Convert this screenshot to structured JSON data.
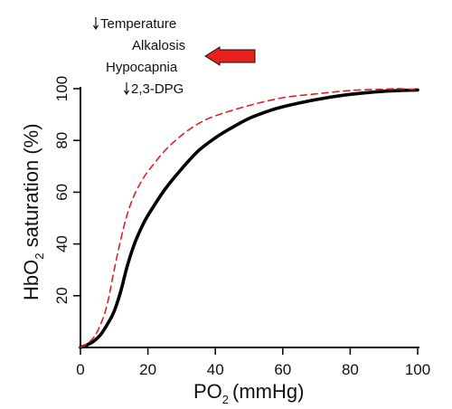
{
  "chart_data": {
    "type": "line",
    "title": "",
    "xlabel": "PO2 (mmHg)",
    "xlabel_parts": {
      "main": "PO",
      "sub": "2",
      "unit": "(mmHg)"
    },
    "ylabel": "HbO2 saturation (%)",
    "ylabel_parts": {
      "main": "HbO",
      "sub": "2",
      "rest": " saturation (%)"
    },
    "xlim": [
      0,
      100
    ],
    "ylim": [
      0,
      100
    ],
    "xticks": [
      0,
      20,
      40,
      60,
      80,
      100
    ],
    "yticks": [
      20,
      40,
      60,
      80,
      100
    ],
    "grid": false,
    "legend": "none",
    "series": [
      {
        "style": "solid",
        "color": "#000000",
        "points": [
          [
            0,
            0
          ],
          [
            2,
            1
          ],
          [
            4,
            2.5
          ],
          [
            6,
            5
          ],
          [
            8,
            9
          ],
          [
            10,
            14
          ],
          [
            12,
            22
          ],
          [
            14,
            32
          ],
          [
            16,
            40
          ],
          [
            18,
            46
          ],
          [
            20,
            51
          ],
          [
            25,
            61
          ],
          [
            30,
            69
          ],
          [
            35,
            76
          ],
          [
            40,
            81
          ],
          [
            45,
            85
          ],
          [
            50,
            88.5
          ],
          [
            55,
            91
          ],
          [
            60,
            93
          ],
          [
            70,
            95.8
          ],
          [
            80,
            97.8
          ],
          [
            90,
            99
          ],
          [
            100,
            99.5
          ]
        ]
      },
      {
        "style": "dashed",
        "color": "#e02020",
        "points": [
          [
            0,
            0
          ],
          [
            2,
            1.5
          ],
          [
            4,
            4
          ],
          [
            6,
            9
          ],
          [
            8,
            17
          ],
          [
            10,
            30
          ],
          [
            12,
            42
          ],
          [
            14,
            52
          ],
          [
            16,
            59
          ],
          [
            18,
            64
          ],
          [
            20,
            68
          ],
          [
            25,
            76
          ],
          [
            30,
            82
          ],
          [
            35,
            86.5
          ],
          [
            40,
            89.5
          ],
          [
            50,
            93.5
          ],
          [
            60,
            96.5
          ],
          [
            70,
            98
          ],
          [
            80,
            99.3
          ],
          [
            90,
            99.8
          ],
          [
            95,
            100
          ],
          [
            100,
            99.5
          ]
        ]
      }
    ],
    "annotations": {
      "factors": [
        {
          "text": "Temperature",
          "down_arrow": true
        },
        {
          "text": "Alkalosis",
          "down_arrow": false
        },
        {
          "text": "Hypocapnia",
          "down_arrow": false
        },
        {
          "text": "2,3-DPG",
          "down_arrow": true
        }
      ],
      "shift_arrow": {
        "direction": "left",
        "color": "#e8211e"
      }
    }
  }
}
